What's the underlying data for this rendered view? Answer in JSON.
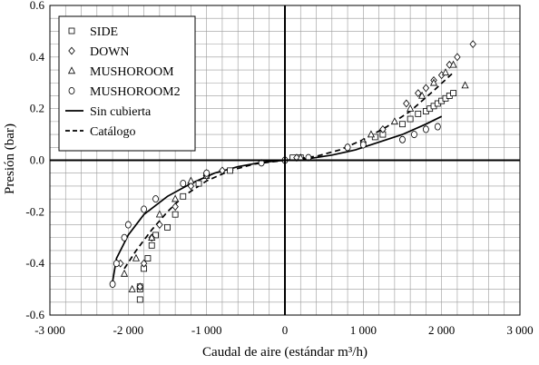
{
  "chart_data": {
    "type": "scatter",
    "xlabel": "Caudal de aire (estándar m³/h)",
    "ylabel": "Presión (bar)",
    "xlim": [
      -3000,
      3000
    ],
    "ylim": [
      -0.6,
      0.6
    ],
    "xticks": [
      -3000,
      -2000,
      -1000,
      0,
      1000,
      2000,
      3000
    ],
    "xtick_labels": [
      "-3 000",
      "-2 000",
      "-1 000",
      "0",
      "1 000",
      "2 000",
      "3 000"
    ],
    "yticks": [
      -0.6,
      -0.4,
      -0.2,
      0.0,
      0.2,
      0.4,
      0.6
    ],
    "ytick_labels": [
      "-0.6",
      "-0.4",
      "-0.2",
      "0.0",
      "0.2",
      "0.4",
      "0.6"
    ],
    "grid": true,
    "legend_position": "top-left",
    "series": [
      {
        "name": "SIDE",
        "marker": "square",
        "points": [
          [
            -1850,
            -0.54
          ],
          [
            -1850,
            -0.5
          ],
          [
            -1850,
            -0.49
          ],
          [
            -1800,
            -0.42
          ],
          [
            -1750,
            -0.38
          ],
          [
            -1700,
            -0.33
          ],
          [
            -1650,
            -0.29
          ],
          [
            -1500,
            -0.26
          ],
          [
            -1400,
            -0.21
          ],
          [
            -1300,
            -0.14
          ],
          [
            -1100,
            -0.09
          ],
          [
            -1000,
            -0.06
          ],
          [
            -700,
            -0.04
          ],
          [
            100,
            0.01
          ],
          [
            200,
            0.01
          ],
          [
            1150,
            0.09
          ],
          [
            1250,
            0.1
          ],
          [
            1500,
            0.14
          ],
          [
            1600,
            0.16
          ],
          [
            1700,
            0.18
          ],
          [
            1800,
            0.19
          ],
          [
            1850,
            0.2
          ],
          [
            1900,
            0.21
          ],
          [
            1950,
            0.22
          ],
          [
            2000,
            0.23
          ],
          [
            2050,
            0.24
          ],
          [
            2100,
            0.25
          ],
          [
            2150,
            0.26
          ]
        ]
      },
      {
        "name": "DOWN",
        "marker": "diamond",
        "points": [
          [
            -2100,
            -0.4
          ],
          [
            -1850,
            -0.49
          ],
          [
            -1800,
            -0.4
          ],
          [
            -1700,
            -0.3
          ],
          [
            -1600,
            -0.25
          ],
          [
            -1400,
            -0.18
          ],
          [
            -1200,
            -0.1
          ],
          [
            -1000,
            -0.06
          ],
          [
            -800,
            -0.04
          ],
          [
            150,
            0.01
          ],
          [
            1000,
            0.07
          ],
          [
            1250,
            0.12
          ],
          [
            1550,
            0.22
          ],
          [
            1700,
            0.26
          ],
          [
            1800,
            0.28
          ],
          [
            1900,
            0.31
          ],
          [
            2000,
            0.33
          ],
          [
            2100,
            0.37
          ],
          [
            2200,
            0.4
          ],
          [
            2400,
            0.45
          ]
        ]
      },
      {
        "name": "MUSHOROOM",
        "marker": "triangle",
        "points": [
          [
            -2050,
            -0.44
          ],
          [
            -1950,
            -0.5
          ],
          [
            -1900,
            -0.38
          ],
          [
            -1700,
            -0.3
          ],
          [
            -1600,
            -0.21
          ],
          [
            -1400,
            -0.15
          ],
          [
            -1200,
            -0.08
          ],
          [
            -1000,
            -0.05
          ],
          [
            200,
            0.01
          ],
          [
            1100,
            0.1
          ],
          [
            1400,
            0.15
          ],
          [
            1600,
            0.2
          ],
          [
            1750,
            0.25
          ],
          [
            1900,
            0.3
          ],
          [
            2050,
            0.34
          ],
          [
            2150,
            0.37
          ],
          [
            2300,
            0.29
          ]
        ]
      },
      {
        "name": "MUSHOROOM2",
        "marker": "circle",
        "points": [
          [
            -2200,
            -0.48
          ],
          [
            -2150,
            -0.4
          ],
          [
            -2050,
            -0.3
          ],
          [
            -2000,
            -0.25
          ],
          [
            -1800,
            -0.19
          ],
          [
            -1650,
            -0.15
          ],
          [
            -1300,
            -0.09
          ],
          [
            -1000,
            -0.05
          ],
          [
            -300,
            -0.01
          ],
          [
            0,
            0.0
          ],
          [
            300,
            0.01
          ],
          [
            800,
            0.05
          ],
          [
            1000,
            0.06
          ],
          [
            1500,
            0.08
          ],
          [
            1650,
            0.1
          ],
          [
            1800,
            0.12
          ],
          [
            1950,
            0.13
          ]
        ]
      }
    ],
    "lines": [
      {
        "name": "Sin cubierta",
        "style": "solid",
        "points": [
          [
            -2200,
            -0.47
          ],
          [
            -2150,
            -0.38
          ],
          [
            -2000,
            -0.29
          ],
          [
            -1800,
            -0.21
          ],
          [
            -1500,
            -0.14
          ],
          [
            -1200,
            -0.09
          ],
          [
            -900,
            -0.05
          ],
          [
            -600,
            -0.025
          ],
          [
            -300,
            -0.008
          ],
          [
            0,
            0.0
          ],
          [
            300,
            0.006
          ],
          [
            600,
            0.02
          ],
          [
            900,
            0.04
          ],
          [
            1200,
            0.07
          ],
          [
            1500,
            0.1
          ],
          [
            1800,
            0.14
          ],
          [
            2000,
            0.17
          ]
        ]
      },
      {
        "name": "Catálogo",
        "style": "dashed",
        "points": [
          [
            -2050,
            -0.42
          ],
          [
            -1900,
            -0.35
          ],
          [
            -1700,
            -0.27
          ],
          [
            -1500,
            -0.2
          ],
          [
            -1300,
            -0.14
          ],
          [
            -1000,
            -0.08
          ],
          [
            -700,
            -0.04
          ],
          [
            -400,
            -0.015
          ],
          [
            0,
            0.0
          ],
          [
            400,
            0.015
          ],
          [
            700,
            0.04
          ],
          [
            1000,
            0.08
          ],
          [
            1300,
            0.13
          ],
          [
            1600,
            0.19
          ],
          [
            1900,
            0.27
          ],
          [
            2150,
            0.34
          ]
        ]
      }
    ]
  }
}
